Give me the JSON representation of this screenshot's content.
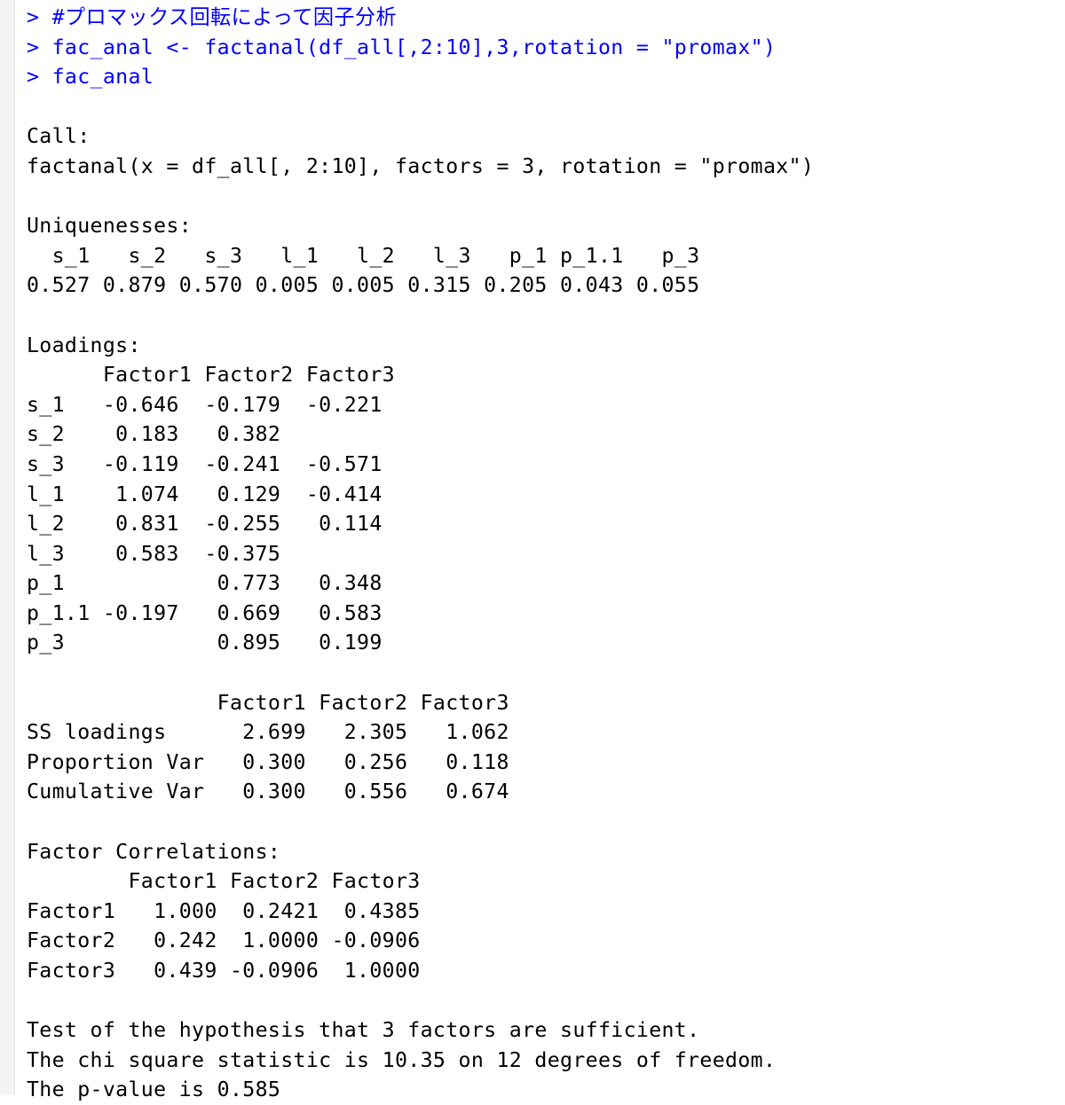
{
  "colors": {
    "command": "#0000ff",
    "output": "#000000"
  },
  "commands": [
    "> #プロマックス回転によって因子分析",
    "> fac_anal <- factanal(df_all[,2:10],3,rotation = \"promax\")",
    "> fac_anal"
  ],
  "call": {
    "heading": "Call:",
    "text": "factanal(x = df_all[, 2:10], factors = 3, rotation = \"promax\")"
  },
  "uniquenesses": {
    "heading": "Uniquenesses:",
    "names_row": "  s_1   s_2   s_3   l_1   l_2   l_3   p_1 p_1.1   p_3 ",
    "values_row": "0.527 0.879 0.570 0.005 0.005 0.315 0.205 0.043 0.055 "
  },
  "loadings": {
    "heading": "Loadings:",
    "rows": [
      "      Factor1 Factor2 Factor3",
      "s_1   -0.646  -0.179  -0.221 ",
      "s_2    0.183   0.382         ",
      "s_3   -0.119  -0.241  -0.571 ",
      "l_1    1.074   0.129  -0.414 ",
      "l_2    0.831  -0.255   0.114 ",
      "l_3    0.583  -0.375         ",
      "p_1            0.773   0.348 ",
      "p_1.1 -0.197   0.669   0.583 ",
      "p_3            0.895   0.199 "
    ]
  },
  "variance": {
    "rows": [
      "               Factor1 Factor2 Factor3",
      "SS loadings      2.699   2.305   1.062",
      "Proportion Var   0.300   0.256   0.118",
      "Cumulative Var   0.300   0.556   0.674"
    ]
  },
  "correlations": {
    "heading": "Factor Correlations:",
    "rows": [
      "        Factor1 Factor2 Factor3",
      "Factor1   1.000  0.2421  0.4385",
      "Factor2   0.242  1.0000 -0.0906",
      "Factor3   0.439 -0.0906  1.0000"
    ]
  },
  "test": {
    "lines": [
      "Test of the hypothesis that 3 factors are sufficient.",
      "The chi square statistic is 10.35 on 12 degrees of freedom.",
      "The p-value is 0.585 "
    ]
  }
}
